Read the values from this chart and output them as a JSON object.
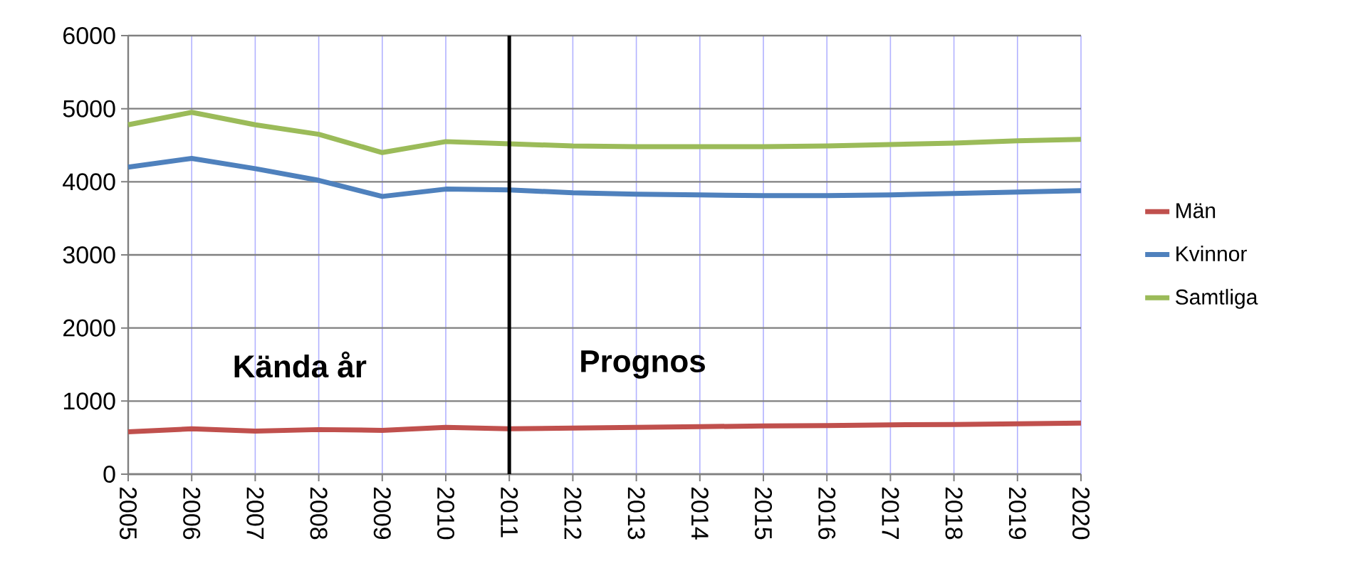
{
  "chart_data": {
    "type": "line",
    "x": [
      2005,
      2006,
      2007,
      2008,
      2009,
      2010,
      2011,
      2012,
      2013,
      2014,
      2015,
      2016,
      2017,
      2018,
      2019,
      2020
    ],
    "series": [
      {
        "name": "Män",
        "color": "#c0504d",
        "values": [
          580,
          620,
          590,
          610,
          600,
          640,
          620,
          630,
          640,
          650,
          660,
          665,
          675,
          680,
          690,
          700
        ]
      },
      {
        "name": "Kvinnor",
        "color": "#4f81bd",
        "values": [
          4200,
          4320,
          4180,
          4020,
          3800,
          3900,
          3890,
          3850,
          3830,
          3820,
          3810,
          3810,
          3820,
          3840,
          3860,
          3880
        ]
      },
      {
        "name": "Samtliga",
        "color": "#9bbb59",
        "values": [
          4780,
          4950,
          4780,
          4650,
          4400,
          4550,
          4520,
          4490,
          4480,
          4480,
          4480,
          4490,
          4510,
          4530,
          4560,
          4580
        ]
      }
    ],
    "xlim": [
      2005,
      2020
    ],
    "xticks": [
      2005,
      2006,
      2007,
      2008,
      2009,
      2010,
      2011,
      2012,
      2013,
      2014,
      2015,
      2016,
      2017,
      2018,
      2019,
      2020
    ],
    "ylim": [
      0,
      6000
    ],
    "yticks": [
      0,
      1000,
      2000,
      3000,
      4000,
      5000,
      6000
    ],
    "ref_lines": [
      {
        "axis": "x",
        "value": 2011,
        "color": "#000000"
      }
    ],
    "annotations": [
      "Kända år",
      "Prognos"
    ],
    "grid": true,
    "legend": "right",
    "marker": "none",
    "line_style": "solid"
  }
}
